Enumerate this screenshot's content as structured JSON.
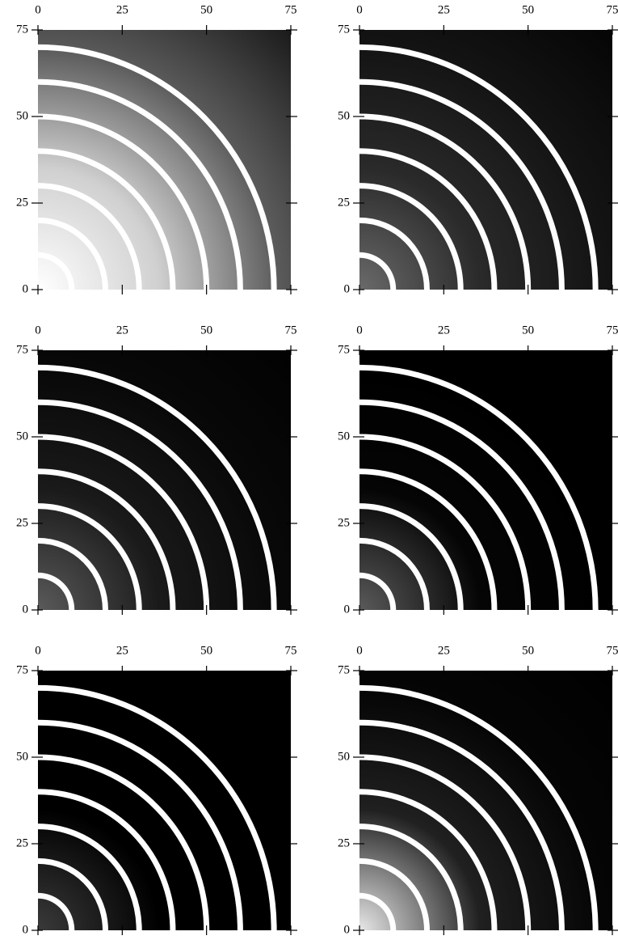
{
  "chart_data": [
    {
      "type": "rings",
      "xlim": [
        0,
        75
      ],
      "ylim": [
        0,
        75
      ],
      "xticks": [
        0,
        25,
        50,
        75
      ],
      "yticks": [
        0,
        25,
        50,
        75
      ],
      "values": [
        10,
        20,
        30,
        40,
        50,
        60,
        70
      ],
      "color": "#ffffff",
      "background": [
        "#ffffff",
        "#d0d0d0",
        "#5a5a5a",
        "#1a1a1a"
      ]
    },
    {
      "type": "rings",
      "xlim": [
        0,
        75
      ],
      "ylim": [
        0,
        75
      ],
      "xticks": [
        0,
        25,
        50,
        75
      ],
      "yticks": [
        0,
        25,
        50,
        75
      ],
      "values": [
        10,
        20,
        30,
        40,
        50,
        60,
        70
      ],
      "color": "#ffffff",
      "background": [
        "#6a6a6a",
        "#2a2a2a",
        "#141414",
        "#050505"
      ]
    },
    {
      "type": "rings",
      "xlim": [
        0,
        75
      ],
      "ylim": [
        0,
        75
      ],
      "xticks": [
        0,
        25,
        50,
        75
      ],
      "yticks": [
        0,
        25,
        50,
        75
      ],
      "values": [
        10,
        20,
        30,
        40,
        50,
        60,
        70
      ],
      "color": "#ffffff",
      "background": [
        "#5a5a5a",
        "#1a1a1a",
        "#080808",
        "#020202"
      ]
    },
    {
      "type": "rings",
      "xlim": [
        0,
        75
      ],
      "ylim": [
        0,
        75
      ],
      "xticks": [
        0,
        25,
        50,
        75
      ],
      "yticks": [
        0,
        25,
        50,
        75
      ],
      "values": [
        10,
        20,
        30,
        40,
        50,
        60,
        70
      ],
      "color": "#ffffff",
      "background": [
        "#5a5a5a",
        "#050505",
        "#000000",
        "#000000"
      ]
    },
    {
      "type": "rings",
      "xlim": [
        0,
        75
      ],
      "ylim": [
        0,
        75
      ],
      "xticks": [
        0,
        25,
        50,
        75
      ],
      "yticks": [
        0,
        25,
        50,
        75
      ],
      "values": [
        10,
        20,
        30,
        40,
        50,
        60,
        70
      ],
      "color": "#ffffff",
      "background": [
        "#3a3a3a",
        "#000000",
        "#000000",
        "#000000"
      ]
    },
    {
      "type": "rings",
      "xlim": [
        0,
        75
      ],
      "ylim": [
        0,
        75
      ],
      "xticks": [
        0,
        25,
        50,
        75
      ],
      "yticks": [
        0,
        25,
        50,
        75
      ],
      "values": [
        10,
        20,
        30,
        40,
        50,
        60,
        70
      ],
      "color": "#ffffff",
      "background": [
        "#e8e8e8",
        "#202020",
        "#050505",
        "#000000"
      ]
    }
  ]
}
